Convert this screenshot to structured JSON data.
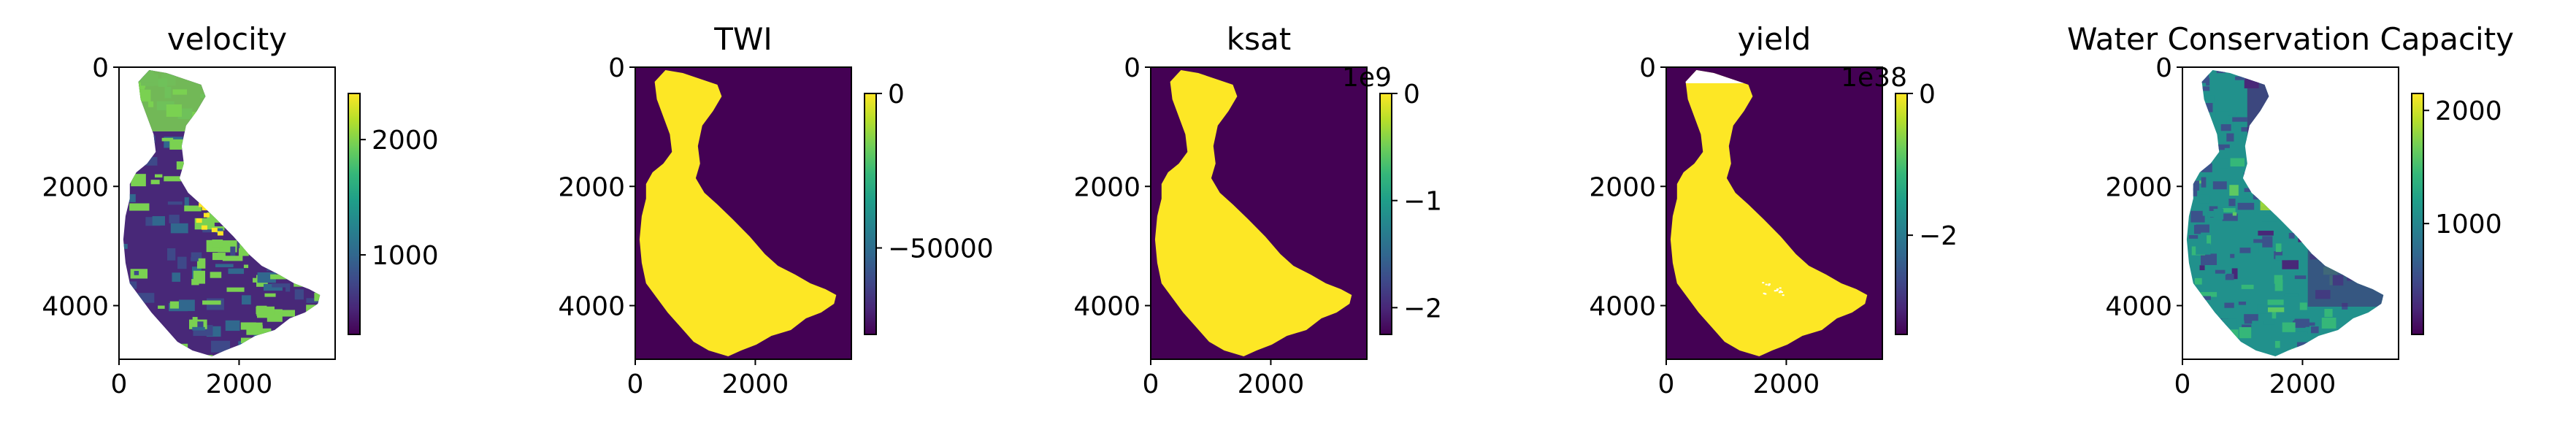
{
  "figure": {
    "background": "#ffffff"
  },
  "chart_data": [
    {
      "type": "heatmap",
      "title": "velocity",
      "x_ticks": [
        "0",
        "2000"
      ],
      "y_ticks": [
        "0",
        "2000",
        "4000"
      ],
      "xlim": [
        0,
        3600
      ],
      "ylim": [
        4900,
        0
      ],
      "colorbar": {
        "ticks": [
          "1000",
          "2000"
        ],
        "range": [
          310,
          2400
        ],
        "offset_text": ""
      },
      "colormap": "viridis",
      "description_colors": {
        "background": "#ffffff",
        "dominant": "#7ad151",
        "secondary": "#482878"
      }
    },
    {
      "type": "heatmap",
      "title": "TWI",
      "x_ticks": [
        "0",
        "2000"
      ],
      "y_ticks": [
        "0",
        "2000",
        "4000"
      ],
      "xlim": [
        0,
        3600
      ],
      "ylim": [
        4900,
        0
      ],
      "colorbar": {
        "ticks": [
          "0",
          "−50000"
        ],
        "range": [
          -78000,
          0
        ],
        "offset_text": ""
      },
      "colormap": "viridis",
      "description_colors": {
        "background": "#440154",
        "basin": "#fde725"
      }
    },
    {
      "type": "heatmap",
      "title": "ksat",
      "x_ticks": [
        "0",
        "2000"
      ],
      "y_ticks": [
        "0",
        "2000",
        "4000"
      ],
      "xlim": [
        0,
        3600
      ],
      "ylim": [
        4900,
        0
      ],
      "colorbar": {
        "ticks": [
          "0",
          "−1",
          "−2"
        ],
        "range": [
          -2.25,
          0
        ],
        "offset_text": "1e9"
      },
      "colormap": "viridis",
      "description_colors": {
        "background": "#440154",
        "basin": "#fde725"
      }
    },
    {
      "type": "heatmap",
      "title": "yield",
      "x_ticks": [
        "0",
        "2000"
      ],
      "y_ticks": [
        "0",
        "2000",
        "4000"
      ],
      "xlim": [
        0,
        3600
      ],
      "ylim": [
        4900,
        0
      ],
      "colorbar": {
        "ticks": [
          "0",
          "−2"
        ],
        "range": [
          -3.4,
          0
        ],
        "offset_text": "1e38"
      },
      "colormap": "viridis",
      "description_colors": {
        "background": "#440154",
        "basin": "#fde725"
      }
    },
    {
      "type": "heatmap",
      "title": "Water Conservation Capacity",
      "x_ticks": [
        "0",
        "2000"
      ],
      "y_ticks": [
        "0",
        "2000",
        "4000"
      ],
      "xlim": [
        0,
        3600
      ],
      "ylim": [
        4900,
        0
      ],
      "colorbar": {
        "ticks": [
          "1000",
          "2000"
        ],
        "range": [
          20,
          2150
        ],
        "offset_text": ""
      },
      "colormap": "viridis",
      "description_colors": {
        "background": "#ffffff",
        "dominant": "#3b528b",
        "secondary": "#21918c"
      }
    }
  ]
}
